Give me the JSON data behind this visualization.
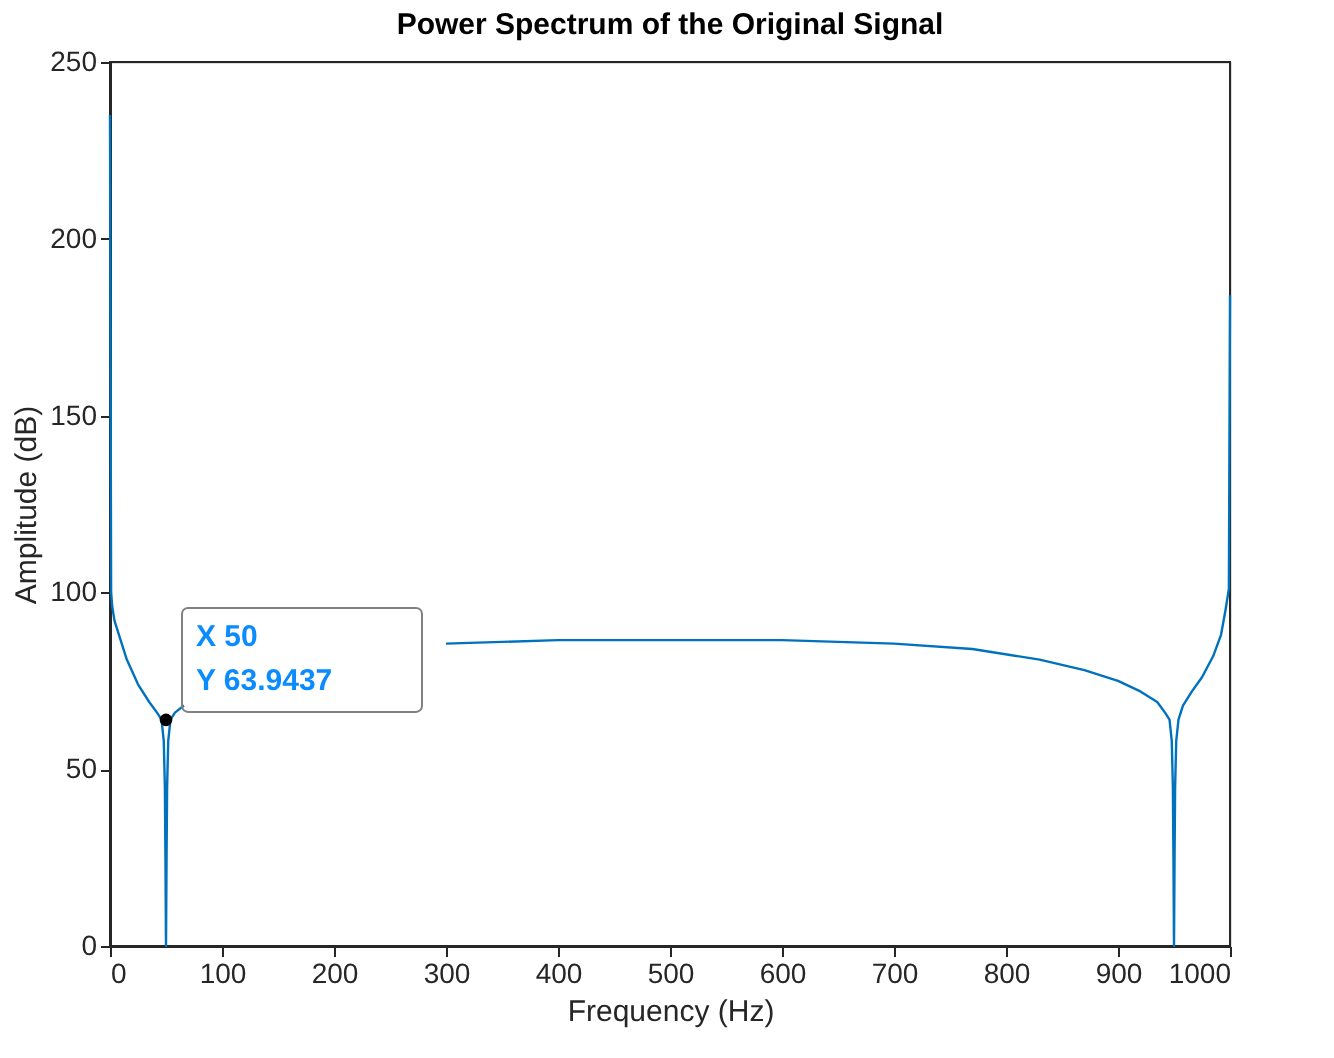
{
  "chart_data": {
    "type": "line",
    "title": "Power Spectrum of the Original Signal",
    "xlabel": "Frequency (Hz)",
    "ylabel": "Amplitude (dB)",
    "xlim": [
      0,
      1000
    ],
    "ylim": [
      0,
      250
    ],
    "xticks": [
      0,
      100,
      200,
      300,
      400,
      500,
      600,
      700,
      800,
      900,
      1000
    ],
    "yticks": [
      0,
      50,
      100,
      150,
      200,
      250
    ],
    "grid": false,
    "series": [
      {
        "color": "#0072bd",
        "x": [
          0,
          1,
          2,
          4,
          8,
          15,
          25,
          35,
          42,
          46,
          48,
          49,
          49.5,
          50,
          50.5,
          51,
          52,
          54,
          58,
          66,
          80,
          100,
          130,
          170,
          230,
          300,
          400,
          500,
          600,
          700,
          770,
          830,
          870,
          900,
          920,
          935,
          942,
          946,
          948,
          949,
          949.5,
          950,
          950.5,
          951,
          952,
          954,
          958,
          966,
          975,
          985,
          992,
          996,
          999,
          1000
        ],
        "values": [
          235,
          100,
          96,
          92,
          88,
          81,
          74,
          69,
          66,
          64,
          58,
          45,
          25,
          0,
          25,
          45,
          58,
          64,
          66,
          68,
          null,
          null,
          null,
          null,
          null,
          85.5,
          86.5,
          86.5,
          86.5,
          85.5,
          84,
          81,
          78,
          75,
          72,
          69,
          66,
          64,
          58,
          45,
          25,
          0,
          25,
          45,
          58,
          64,
          68,
          72,
          76,
          82,
          88,
          95,
          101,
          184
        ]
      }
    ],
    "annotations": [
      {
        "text": "X 50\nY 63.9437",
        "x": 50,
        "y": 63.9437
      }
    ]
  }
}
